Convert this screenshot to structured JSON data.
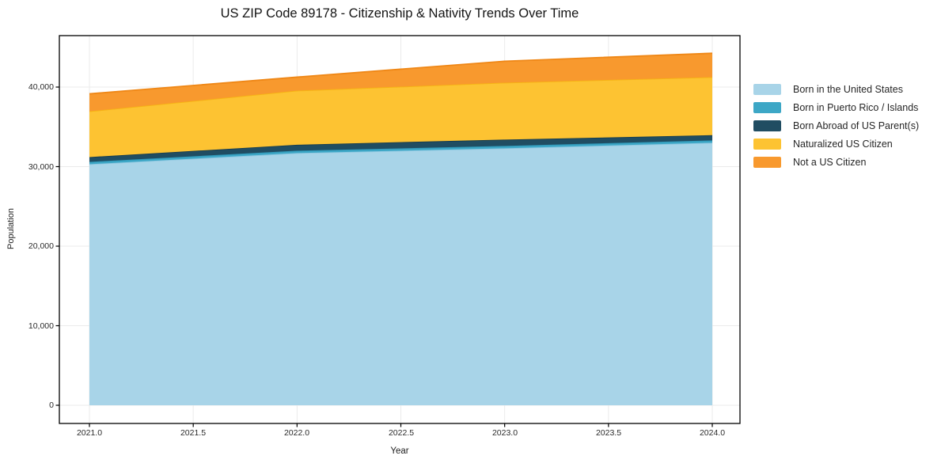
{
  "title": "US ZIP Code 89178 - Citizenship & Nativity Trends Over Time",
  "chart_data": {
    "type": "area",
    "stacked": true,
    "title": "US ZIP Code 89178 - Citizenship & Nativity Trends Over Time",
    "xlabel": "Year",
    "ylabel": "Population",
    "x": [
      2021,
      2022,
      2023,
      2024
    ],
    "series": [
      {
        "name": "Born in the United States",
        "color": "#a8d4e8",
        "edge": "#8fc8e1",
        "values": [
          30300,
          31700,
          32300,
          33000
        ]
      },
      {
        "name": "Born in Puerto Rico / Islands",
        "color": "#3da7c6",
        "edge": "#2e96b6",
        "values": [
          300,
          300,
          300,
          300
        ]
      },
      {
        "name": "Born Abroad of US Parent(s)",
        "color": "#204d62",
        "edge": "#173c4e",
        "values": [
          600,
          750,
          800,
          650
        ]
      },
      {
        "name": "Naturalized US Citizen",
        "color": "#fdc332",
        "edge": "#f6b413",
        "values": [
          5750,
          6800,
          7150,
          7300
        ]
      },
      {
        "name": "Not a US Citizen",
        "color": "#f8992e",
        "edge": "#ef8716",
        "values": [
          2200,
          1700,
          2700,
          3000
        ]
      }
    ],
    "x_ticks": [
      "2021.0",
      "2021.5",
      "2022.0",
      "2022.5",
      "2023.0",
      "2023.5",
      "2024.0"
    ],
    "x_tick_values": [
      2021.0,
      2021.5,
      2022.0,
      2022.5,
      2023.0,
      2023.5,
      2024.0
    ],
    "y_ticks": [
      "0",
      "10,000",
      "20,000",
      "30,000",
      "40,000"
    ],
    "y_tick_values": [
      0,
      10000,
      20000,
      30000,
      40000
    ],
    "xlim": [
      2020.855,
      2024.134
    ],
    "ylim": [
      -2500,
      46450
    ],
    "grid": true,
    "gridline_color": "#ebebeb",
    "spine_color": "#000000",
    "legend_position": "right"
  }
}
